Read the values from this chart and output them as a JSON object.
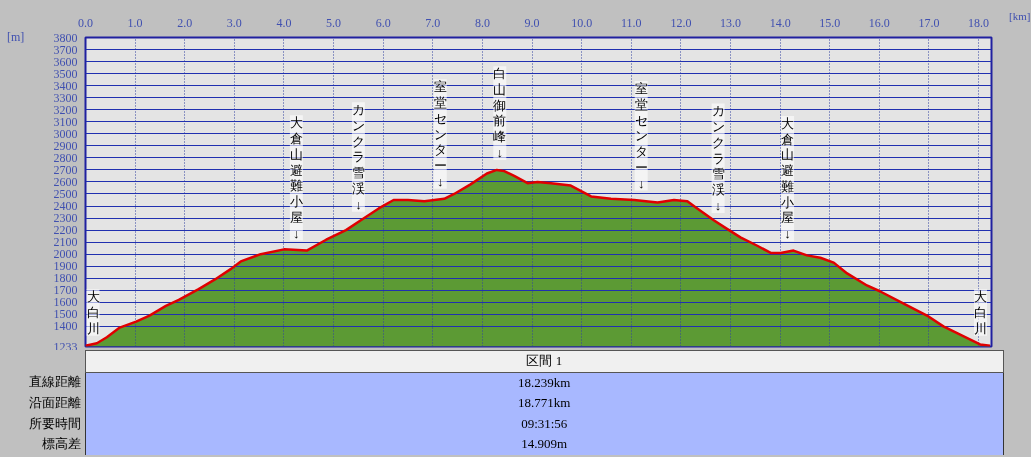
{
  "chart_data": {
    "type": "area",
    "xlabel": "[km]",
    "ylabel": "[m]",
    "x": [
      0,
      0.23,
      0.43,
      0.69,
      1.02,
      1.29,
      1.62,
      1.88,
      2.28,
      2.61,
      2.94,
      3.13,
      3.53,
      4.0,
      4.46,
      4.85,
      5.25,
      5.58,
      5.91,
      6.21,
      6.5,
      6.83,
      7.23,
      7.43,
      7.76,
      8.09,
      8.29,
      8.44,
      8.64,
      8.91,
      9.11,
      9.38,
      9.78,
      10.19,
      10.59,
      11.06,
      11.53,
      11.86,
      12.13,
      12.33,
      12.67,
      12.93,
      13.2,
      13.54,
      13.81,
      14.01,
      14.27,
      14.54,
      14.81,
      15.08,
      15.35,
      15.75,
      16.02,
      16.49,
      16.96,
      17.29,
      17.69,
      18.03,
      18.23
    ],
    "series": [
      {
        "color": "#5c9a34",
        "values": [
          1240,
          1260,
          1310,
          1390,
          1440,
          1490,
          1570,
          1620,
          1710,
          1790,
          1880,
          1940,
          2000,
          2040,
          2030,
          2120,
          2200,
          2290,
          2380,
          2450,
          2450,
          2440,
          2460,
          2500,
          2580,
          2670,
          2700,
          2690,
          2650,
          2590,
          2600,
          2590,
          2570,
          2480,
          2460,
          2450,
          2430,
          2450,
          2440,
          2380,
          2280,
          2210,
          2140,
          2070,
          2010,
          2010,
          2030,
          1990,
          1970,
          1930,
          1840,
          1740,
          1690,
          1590,
          1490,
          1400,
          1320,
          1250,
          1240
        ]
      }
    ],
    "xlim": [
      0,
      18.26
    ],
    "ylim": [
      1233,
      3800
    ],
    "xticks": [
      {
        "value": 0,
        "label": "0.0"
      },
      {
        "value": 1,
        "label": "1.0"
      },
      {
        "value": 2,
        "label": "2.0"
      },
      {
        "value": 3,
        "label": "3.0"
      },
      {
        "value": 4,
        "label": "4.0"
      },
      {
        "value": 5,
        "label": "5.0"
      },
      {
        "value": 6,
        "label": "6.0"
      },
      {
        "value": 7,
        "label": "7.0"
      },
      {
        "value": 8,
        "label": "8.0"
      },
      {
        "value": 9,
        "label": "9.0"
      },
      {
        "value": 10,
        "label": "10.0"
      },
      {
        "value": 11,
        "label": "11.0"
      },
      {
        "value": 12,
        "label": "12.0"
      },
      {
        "value": 13,
        "label": "13.0"
      },
      {
        "value": 14,
        "label": "14.0"
      },
      {
        "value": 15,
        "label": "15.0"
      },
      {
        "value": 16,
        "label": "16.0"
      },
      {
        "value": 17,
        "label": "17.0"
      },
      {
        "value": 18,
        "label": "18.0"
      }
    ],
    "yticks": [
      1233,
      1400,
      1500,
      1600,
      1700,
      1800,
      1900,
      2000,
      2100,
      2200,
      2300,
      2400,
      2500,
      2600,
      2700,
      2800,
      2900,
      3000,
      3100,
      3200,
      3300,
      3400,
      3500,
      3600,
      3700,
      3800
    ],
    "grid": true,
    "annotations": [
      {
        "text": "大白川",
        "x": 0,
        "y": 1240
      },
      {
        "text": "大倉山避難小屋↓",
        "x": 4.25,
        "y": 2030
      },
      {
        "text": "カンクラ雪渓↓",
        "x": 5.5,
        "y": 2270
      },
      {
        "text": "室堂センター↓",
        "x": 7.15,
        "y": 2460
      },
      {
        "text": "白山御前峰↓",
        "x": 8.35,
        "y": 2700
      },
      {
        "text": "室堂センター↓",
        "x": 11.2,
        "y": 2445
      },
      {
        "text": "カンクラ雪渓↓",
        "x": 12.75,
        "y": 2260
      },
      {
        "text": "大倉山避難小屋↓",
        "x": 14.15,
        "y": 2025
      },
      {
        "text": "大白川",
        "x": 18.23,
        "y": 1240
      },
      "区間 1",
      "直線距離",
      "18.239km",
      "沿面距離",
      "18.771km",
      "所要時間",
      "09:31:56",
      "標高差",
      "14.909m"
    ]
  }
}
